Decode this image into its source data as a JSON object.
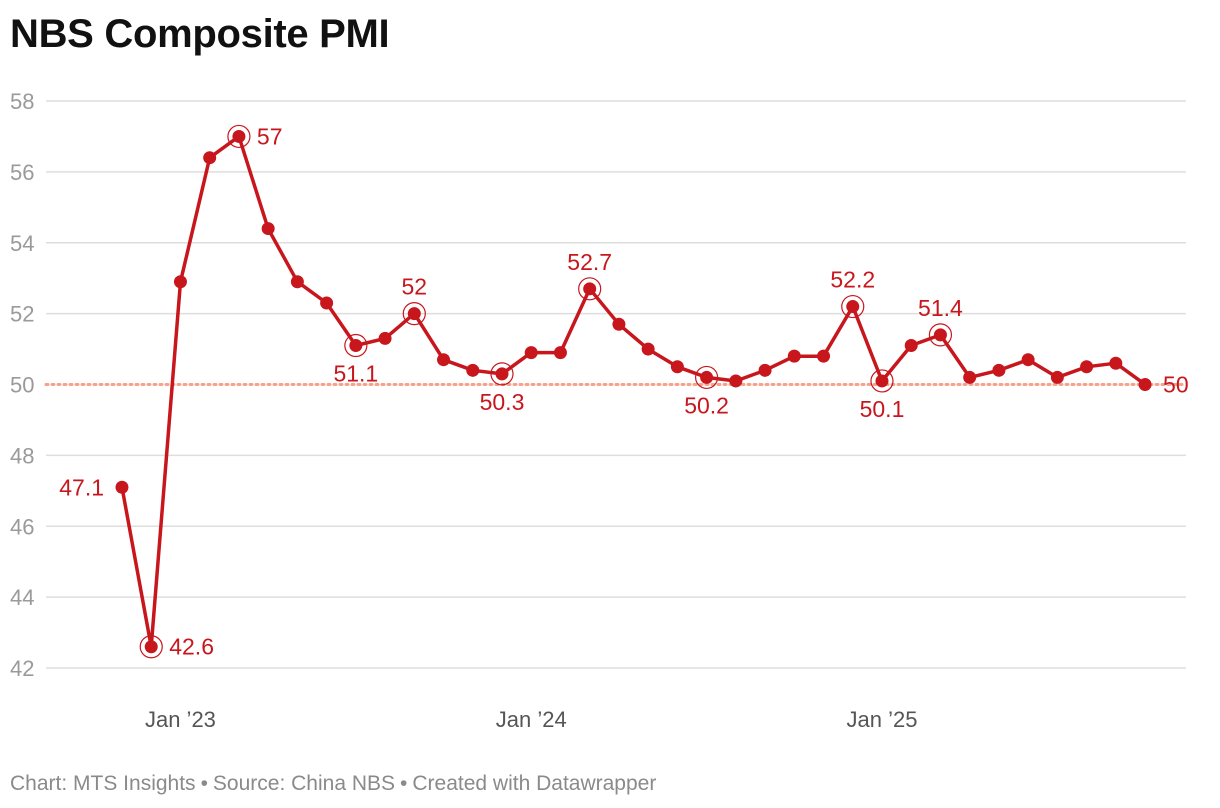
{
  "title": "NBS Composite PMI",
  "footer": {
    "chart_by": "Chart: MTS Insights",
    "source": "Source: China NBS",
    "created": "Created with Datawrapper",
    "separator": "•"
  },
  "colors": {
    "line": "#c8161d",
    "reference_line": "#f4a28c",
    "grid": "#dedede",
    "axis_text": "#9a9a9a",
    "x_axis_text": "#555555"
  },
  "chart_data": {
    "type": "line",
    "title": "NBS Composite PMI",
    "xlabel": "",
    "ylabel": "",
    "ylim": [
      42,
      58
    ],
    "y_ticks": [
      42,
      44,
      46,
      48,
      50,
      52,
      54,
      56,
      58
    ],
    "x_start": "2022-11",
    "x_tick_labels": [
      {
        "label": "Jan ’23",
        "date": "2023-01"
      },
      {
        "label": "Jan ’24",
        "date": "2024-01"
      },
      {
        "label": "Jan ’25",
        "date": "2025-01"
      }
    ],
    "reference_line": 50,
    "grid": true,
    "series": [
      {
        "values": [
          47.1,
          42.6,
          52.9,
          56.4,
          57.0,
          54.4,
          52.9,
          52.3,
          51.1,
          51.3,
          52.0,
          50.7,
          50.4,
          50.3,
          50.9,
          50.9,
          52.7,
          51.7,
          51.0,
          50.5,
          50.2,
          50.1,
          50.4,
          50.8,
          50.8,
          52.2,
          50.1,
          51.1,
          51.4,
          50.2,
          50.4,
          50.7,
          50.2,
          50.5,
          50.6,
          50.0
        ]
      }
    ],
    "annotations": [
      {
        "index": 0,
        "text": "47.1",
        "pos": "left",
        "ring": false
      },
      {
        "index": 1,
        "text": "42.6",
        "pos": "right",
        "ring": true
      },
      {
        "index": 4,
        "text": "57",
        "pos": "right",
        "ring": true
      },
      {
        "index": 8,
        "text": "51.1",
        "pos": "below",
        "ring": true
      },
      {
        "index": 10,
        "text": "52",
        "pos": "above",
        "ring": true
      },
      {
        "index": 13,
        "text": "50.3",
        "pos": "below",
        "ring": true
      },
      {
        "index": 16,
        "text": "52.7",
        "pos": "above",
        "ring": true
      },
      {
        "index": 20,
        "text": "50.2",
        "pos": "below",
        "ring": true
      },
      {
        "index": 25,
        "text": "52.2",
        "pos": "above",
        "ring": true
      },
      {
        "index": 26,
        "text": "50.1",
        "pos": "below",
        "ring": true
      },
      {
        "index": 28,
        "text": "51.4",
        "pos": "above",
        "ring": true
      },
      {
        "index": 35,
        "text": "50",
        "pos": "right",
        "ring": false
      }
    ]
  }
}
